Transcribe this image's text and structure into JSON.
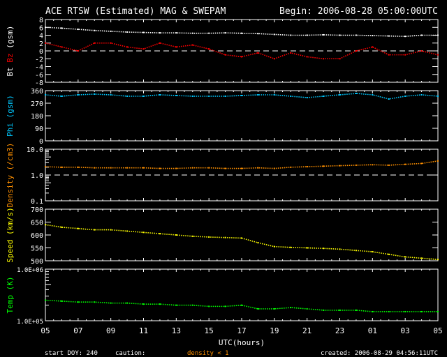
{
  "header": {
    "title": "ACE RTSW (Estimated) MAG & SWEPAM",
    "begin": "Begin: 2006-08-28 05:00:00UTC"
  },
  "footer": {
    "start_doy": "start DOY: 240",
    "caution": "caution:",
    "caution_note": "density < 1",
    "created": "created: 2006-08-29 04:56:11UTC"
  },
  "colors": {
    "bt": "#ffffff",
    "bz": "#ff0000",
    "phi": "#00c8ff",
    "density": "#ff9000",
    "speed": "#ffff00",
    "temp": "#00ff00",
    "caution": "#ff9000"
  },
  "chart_data": {
    "type": "scatter",
    "xlabel": "UTC(hours)",
    "x_ticks": [
      "05",
      "07",
      "09",
      "11",
      "13",
      "15",
      "17",
      "19",
      "21",
      "23",
      "01",
      "03",
      "05"
    ],
    "x_hours": [
      0,
      1,
      2,
      3,
      4,
      5,
      6,
      7,
      8,
      9,
      10,
      11,
      12,
      13,
      14,
      15,
      16,
      17,
      18,
      19,
      20,
      21,
      22,
      23,
      24
    ],
    "panels": [
      {
        "id": "mag",
        "ylabel_parts": [
          "Bt",
          "Bz",
          "(gsm)"
        ],
        "scale": "linear",
        "ylim": [
          -8,
          8
        ],
        "ref_line": 0,
        "tick_labels": [
          "8",
          "6",
          "4",
          "2",
          "0",
          "-2",
          "-4",
          "-6",
          "-8"
        ],
        "tick_values": [
          8,
          6,
          4,
          2,
          0,
          -2,
          -4,
          -6,
          -8
        ],
        "series": [
          {
            "name": "Bt",
            "color_key": "bt",
            "values": [
              6,
              5.8,
              5.5,
              5.2,
              5,
              4.8,
              4.7,
              4.6,
              4.6,
              4.5,
              4.5,
              4.6,
              4.5,
              4.4,
              4.2,
              4,
              4,
              4.1,
              4,
              4,
              3.9,
              3.8,
              3.7,
              4,
              4
            ]
          },
          {
            "name": "Bz",
            "color_key": "bz",
            "values": [
              2,
              1,
              0,
              2,
              2,
              1,
              0.5,
              2,
              1,
              1.5,
              0.5,
              -1,
              -1.5,
              -0.5,
              -2,
              -0.5,
              -1.5,
              -2,
              -2,
              0,
              1,
              -1,
              -1,
              0,
              -1
            ]
          }
        ]
      },
      {
        "id": "phi",
        "ylabel_parts": [
          "Phi",
          "(gsm)"
        ],
        "scale": "linear",
        "ylim": [
          0,
          360
        ],
        "tick_labels": [
          "360",
          "270",
          "180",
          "90",
          "0"
        ],
        "tick_values": [
          360,
          270,
          180,
          90,
          0
        ],
        "series": [
          {
            "name": "Phi",
            "color_key": "phi",
            "values": [
              330,
              320,
              330,
              335,
              330,
              320,
              320,
              330,
              325,
              320,
              320,
              320,
              325,
              330,
              330,
              320,
              310,
              320,
              330,
              340,
              330,
              300,
              320,
              330,
              320
            ]
          }
        ]
      },
      {
        "id": "density",
        "ylabel_parts": [
          "Density",
          "(/cm3)"
        ],
        "scale": "log",
        "ylim": [
          0.1,
          10
        ],
        "ref_line": 1,
        "tick_labels": [
          "10.0",
          "1.0",
          "0.1"
        ],
        "tick_values": [
          10,
          1,
          0.1
        ],
        "series": [
          {
            "name": "Density",
            "color_key": "density",
            "values": [
              2.1,
              2.0,
              2.0,
              1.9,
              1.9,
              1.9,
              1.9,
              1.8,
              1.8,
              1.9,
              1.9,
              1.8,
              1.8,
              1.9,
              1.8,
              2.0,
              2.1,
              2.2,
              2.3,
              2.4,
              2.5,
              2.4,
              2.6,
              2.8,
              3.5
            ]
          }
        ]
      },
      {
        "id": "speed",
        "ylabel_parts": [
          "Speed",
          "(km/s)"
        ],
        "scale": "linear",
        "ylim": [
          500,
          700
        ],
        "tick_labels": [
          "700",
          "650",
          "600",
          "550",
          "500"
        ],
        "tick_values": [
          700,
          650,
          600,
          550,
          500
        ],
        "series": [
          {
            "name": "Speed",
            "color_key": "speed",
            "values": [
              640,
              630,
              625,
              620,
              620,
              615,
              610,
              605,
              600,
              595,
              592,
              590,
              588,
              570,
              555,
              552,
              550,
              548,
              545,
              540,
              535,
              525,
              515,
              510,
              505
            ]
          }
        ]
      },
      {
        "id": "temp",
        "ylabel_parts": [
          "Temp",
          "(K)"
        ],
        "scale": "log",
        "ylim": [
          100000,
          1000000
        ],
        "tick_labels": [
          "1.0E+06",
          "1.0E+05"
        ],
        "tick_values": [
          1000000,
          100000
        ],
        "series": [
          {
            "name": "Temp",
            "color_key": "temp",
            "values": [
              250000,
              240000,
              230000,
              230000,
              220000,
              220000,
              210000,
              210000,
              200000,
              200000,
              190000,
              190000,
              200000,
              170000,
              170000,
              180000,
              170000,
              160000,
              160000,
              160000,
              150000,
              150000,
              150000,
              150000,
              150000
            ]
          }
        ]
      }
    ]
  }
}
